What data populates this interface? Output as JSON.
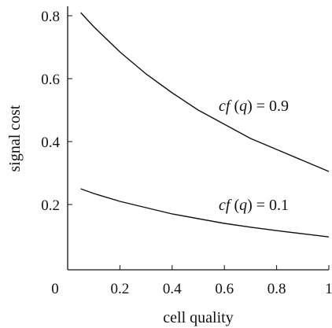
{
  "chart_data": {
    "type": "line",
    "title": "",
    "xlabel": "cell quality",
    "ylabel": "signal cost",
    "xlim": [
      0,
      1
    ],
    "ylim": [
      0,
      0.82
    ],
    "grid": false,
    "x_ticks": [
      {
        "value": 0,
        "label": "0"
      },
      {
        "value": 0.2,
        "label": "0.2"
      },
      {
        "value": 0.4,
        "label": "0.4"
      },
      {
        "value": 0.6,
        "label": "0.6"
      },
      {
        "value": 0.8,
        "label": "0.8"
      },
      {
        "value": 1,
        "label": "1"
      }
    ],
    "y_ticks": [
      {
        "value": 0.2,
        "label": "0.2"
      },
      {
        "value": 0.4,
        "label": "0.4"
      },
      {
        "value": 0.6,
        "label": "0.6"
      },
      {
        "value": 0.8,
        "label": "0.8"
      }
    ],
    "series": [
      {
        "id": "high",
        "x": [
          0.05,
          0.1,
          0.2,
          0.3,
          0.4,
          0.5,
          0.6,
          0.7,
          0.8,
          0.9,
          1.0
        ],
        "y": [
          0.81,
          0.765,
          0.685,
          0.615,
          0.555,
          0.5,
          0.455,
          0.41,
          0.375,
          0.34,
          0.305
        ]
      },
      {
        "id": "low",
        "x": [
          0.05,
          0.1,
          0.2,
          0.3,
          0.4,
          0.5,
          0.6,
          0.7,
          0.8,
          0.9,
          1.0
        ],
        "y": [
          0.25,
          0.235,
          0.21,
          0.19,
          0.17,
          0.155,
          0.14,
          0.128,
          0.117,
          0.107,
          0.097
        ]
      }
    ],
    "annotations": [
      {
        "series": "high",
        "text_italic": "cf",
        "text_open": " (",
        "text_italic2": "q",
        "text_rest": ") = 0.9",
        "x": 0.55,
        "y": 0.5
      },
      {
        "series": "low",
        "text_italic": "cf",
        "text_open": " (",
        "text_italic2": "q",
        "text_rest": ") = 0.1",
        "x": 0.55,
        "y": 0.2
      }
    ]
  }
}
